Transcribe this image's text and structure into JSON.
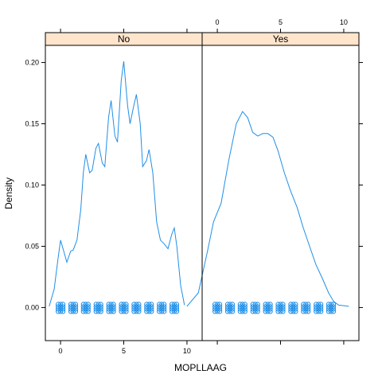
{
  "chart_data": {
    "type": "density",
    "xlabel": "MOPLLAAG",
    "ylabel": "Density",
    "xlim": [
      -1.2,
      11.2
    ],
    "ylim": [
      -0.027,
      0.214
    ],
    "x_ticks": [
      0,
      5,
      10
    ],
    "y_ticks": [
      0.0,
      0.05,
      0.1,
      0.15,
      0.2
    ],
    "y_tick_labels": [
      "0.00",
      "0.05",
      "0.10",
      "0.15",
      "0.20"
    ],
    "line_color": "#1f8fe8",
    "strip_color": "#ffe5cc",
    "panels": [
      {
        "label": "No",
        "curve": [
          [
            -0.9,
            0.001
          ],
          [
            -0.5,
            0.015
          ],
          [
            -0.2,
            0.04
          ],
          [
            0,
            0.055
          ],
          [
            0.2,
            0.048
          ],
          [
            0.5,
            0.037
          ],
          [
            0.8,
            0.046
          ],
          [
            1,
            0.047
          ],
          [
            1.3,
            0.055
          ],
          [
            1.6,
            0.08
          ],
          [
            1.8,
            0.11
          ],
          [
            2,
            0.125
          ],
          [
            2.3,
            0.11
          ],
          [
            2.5,
            0.112
          ],
          [
            2.8,
            0.13
          ],
          [
            3,
            0.134
          ],
          [
            3.3,
            0.118
          ],
          [
            3.5,
            0.115
          ],
          [
            3.8,
            0.155
          ],
          [
            4,
            0.169
          ],
          [
            4.3,
            0.14
          ],
          [
            4.5,
            0.135
          ],
          [
            4.8,
            0.185
          ],
          [
            5,
            0.201
          ],
          [
            5.3,
            0.165
          ],
          [
            5.5,
            0.15
          ],
          [
            5.8,
            0.165
          ],
          [
            6,
            0.174
          ],
          [
            6.3,
            0.15
          ],
          [
            6.5,
            0.115
          ],
          [
            6.8,
            0.12
          ],
          [
            7,
            0.129
          ],
          [
            7.3,
            0.11
          ],
          [
            7.6,
            0.07
          ],
          [
            7.9,
            0.055
          ],
          [
            8.2,
            0.052
          ],
          [
            8.5,
            0.048
          ],
          [
            8.8,
            0.06
          ],
          [
            9,
            0.065
          ],
          [
            9.2,
            0.05
          ],
          [
            9.5,
            0.018
          ],
          [
            9.8,
            0.002
          ]
        ],
        "rug_x": [
          0,
          1,
          2,
          3,
          4,
          5,
          6,
          7,
          8,
          9
        ]
      },
      {
        "label": "Yes",
        "curve": [
          [
            -2.4,
            0.001
          ],
          [
            -1.5,
            0.012
          ],
          [
            -0.8,
            0.045
          ],
          [
            -0.3,
            0.07
          ],
          [
            0.3,
            0.085
          ],
          [
            0.9,
            0.12
          ],
          [
            1.5,
            0.15
          ],
          [
            2,
            0.16
          ],
          [
            2.4,
            0.155
          ],
          [
            2.8,
            0.143
          ],
          [
            3.2,
            0.14
          ],
          [
            3.6,
            0.142
          ],
          [
            4,
            0.142
          ],
          [
            4.4,
            0.139
          ],
          [
            4.8,
            0.128
          ],
          [
            5.3,
            0.11
          ],
          [
            5.8,
            0.095
          ],
          [
            6.3,
            0.082
          ],
          [
            6.8,
            0.065
          ],
          [
            7.3,
            0.05
          ],
          [
            7.8,
            0.035
          ],
          [
            8.3,
            0.024
          ],
          [
            8.8,
            0.012
          ],
          [
            9.2,
            0.005
          ],
          [
            9.6,
            0.002
          ],
          [
            10.4,
            0.001
          ]
        ],
        "rug_x": [
          0,
          1,
          2,
          3,
          4,
          5,
          6,
          7,
          8,
          9
        ]
      }
    ]
  }
}
